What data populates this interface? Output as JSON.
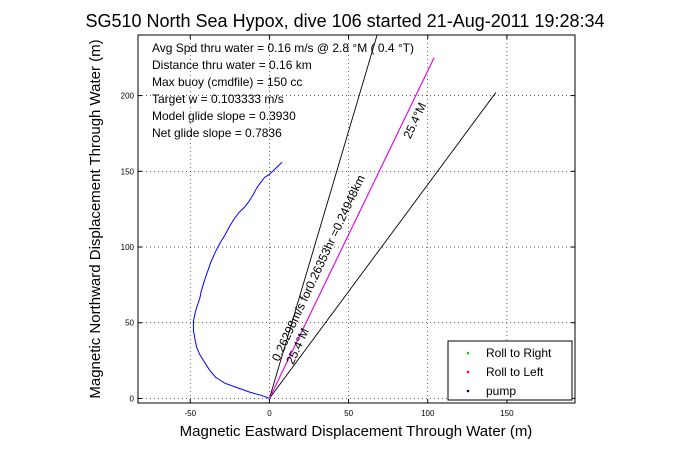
{
  "chart_data": {
    "type": "line",
    "title": "SG510 North Sea Hypox, dive 106 started 21-Aug-2011 19:28:34",
    "xlabel": "Magnetic Eastward Displacement Through Water (m)",
    "ylabel": "Magnetic Northward Displacement Through Water (m)",
    "xlim": [
      -83,
      193
    ],
    "ylim": [
      -3,
      240
    ],
    "xticks": [
      -50,
      0,
      50,
      100,
      150
    ],
    "yticks": [
      0,
      50,
      100,
      150,
      200
    ],
    "grid": true,
    "info_lines": [
      "Avg Spd thru water =  0.16 m/s @   2.8   °M (  0.4 °T)",
      "Distance thru water =  0.16 km",
      "Max buoy (cmdfile) = 150 cc",
      "Target w = 0.103333 m/s",
      "Model glide slope = 0.3930",
      "Net glide slope = 0.7836"
    ],
    "legend": {
      "placement": "bottom-right",
      "entries": [
        {
          "label": "Roll to Right",
          "color": "#00cc00"
        },
        {
          "label": "Roll to Left",
          "color": "#ff0000"
        },
        {
          "label": "pump",
          "color": "#000080"
        }
      ]
    },
    "series": [
      {
        "color": "#0000ff",
        "x": [
          0,
          -5,
          -12,
          -20,
          -28,
          -34,
          -38,
          -41,
          -44,
          -46,
          -47,
          -48,
          -48,
          -47,
          -46,
          -44,
          -43,
          -41,
          -39,
          -37,
          -34,
          -31,
          -28,
          -25,
          -22,
          -19,
          -16,
          -13,
          -10,
          -8,
          -6,
          -3,
          0,
          2,
          4,
          6,
          8
        ],
        "y": [
          0,
          2,
          4,
          7,
          10,
          14,
          19,
          24,
          29,
          34,
          39,
          45,
          51,
          56,
          60,
          66,
          71,
          78,
          84,
          90,
          97,
          103,
          108,
          114,
          119,
          123,
          126,
          130,
          135,
          139,
          142,
          146,
          148,
          150,
          152,
          154,
          156
        ]
      },
      {
        "color": "#ff00ff",
        "x": [
          0,
          104
        ],
        "y": [
          0,
          225
        ]
      }
    ],
    "reference_lines": [
      {
        "x": [
          0,
          68
        ],
        "y": [
          0,
          240
        ]
      },
      {
        "x": [
          0,
          104
        ],
        "y": [
          0,
          225
        ]
      },
      {
        "x": [
          0,
          143
        ],
        "y": [
          0,
          202
        ]
      }
    ],
    "annotations": [
      {
        "text": "0.26298m/s for0.26353hr =0.24948km",
        "x": 6,
        "y": 24,
        "angle_deg": 65
      },
      {
        "text": "25.4°M",
        "x": 89,
        "y": 171,
        "angle_deg": 65
      },
      {
        "text": "25.4°M",
        "x": 15,
        "y": 22,
        "angle_deg": 65
      }
    ]
  }
}
